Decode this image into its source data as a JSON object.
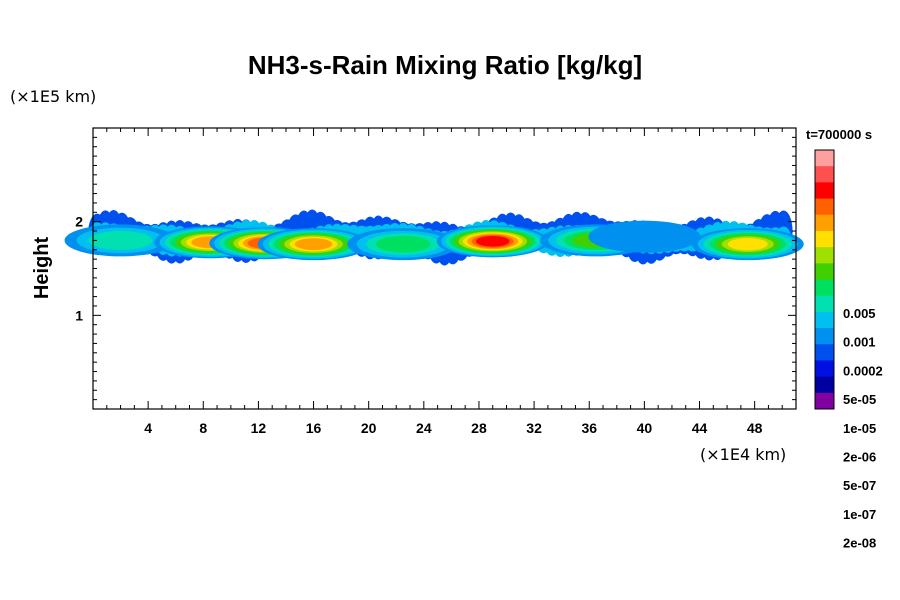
{
  "chart_data": {
    "type": "heatmap",
    "title": "NH3-s-Rain Mixing Ratio [kg/kg]",
    "ylabel": "Height",
    "y_unit": "(×1E5 km)",
    "x_unit": "(×1E4 km)",
    "time_label": "t=700000 s",
    "xlim": [
      0,
      51
    ],
    "ylim": [
      0,
      3
    ],
    "x_ticks": [
      4,
      8,
      12,
      16,
      20,
      24,
      28,
      32,
      36,
      40,
      44,
      48
    ],
    "y_ticks": [
      1,
      2
    ],
    "colorbar": {
      "colors": [
        "#ffa0a0",
        "#ff5050",
        "#ff0000",
        "#ff6000",
        "#ffa000",
        "#ffe000",
        "#a0e000",
        "#40d000",
        "#00e060",
        "#00e0b0",
        "#00c0f0",
        "#0090f0",
        "#0050f0",
        "#0010e0",
        "#0000a0",
        "#8000a0"
      ],
      "labels": [
        "0.005",
        "0.001",
        "0.0002",
        "5e-05",
        "1e-05",
        "2e-06",
        "5e-07",
        "1e-07",
        "2e-08"
      ]
    },
    "field": {
      "x_range": [
        0,
        51
      ],
      "band_base_height": 1.75,
      "cells": [
        {
          "x": 2,
          "y": 1.8,
          "level": 9
        },
        {
          "x": 8.5,
          "y": 1.78,
          "level": 4
        },
        {
          "x": 12.5,
          "y": 1.77,
          "level": 3
        },
        {
          "x": 16,
          "y": 1.76,
          "level": 4
        },
        {
          "x": 22.5,
          "y": 1.76,
          "level": 8
        },
        {
          "x": 29,
          "y": 1.79,
          "level": 2
        },
        {
          "x": 36.5,
          "y": 1.8,
          "level": 7
        },
        {
          "x": 40,
          "y": 1.84,
          "level": 11
        },
        {
          "x": 44,
          "y": 1.82,
          "level": 12
        },
        {
          "x": 47.5,
          "y": 1.76,
          "level": 5
        }
      ]
    }
  }
}
